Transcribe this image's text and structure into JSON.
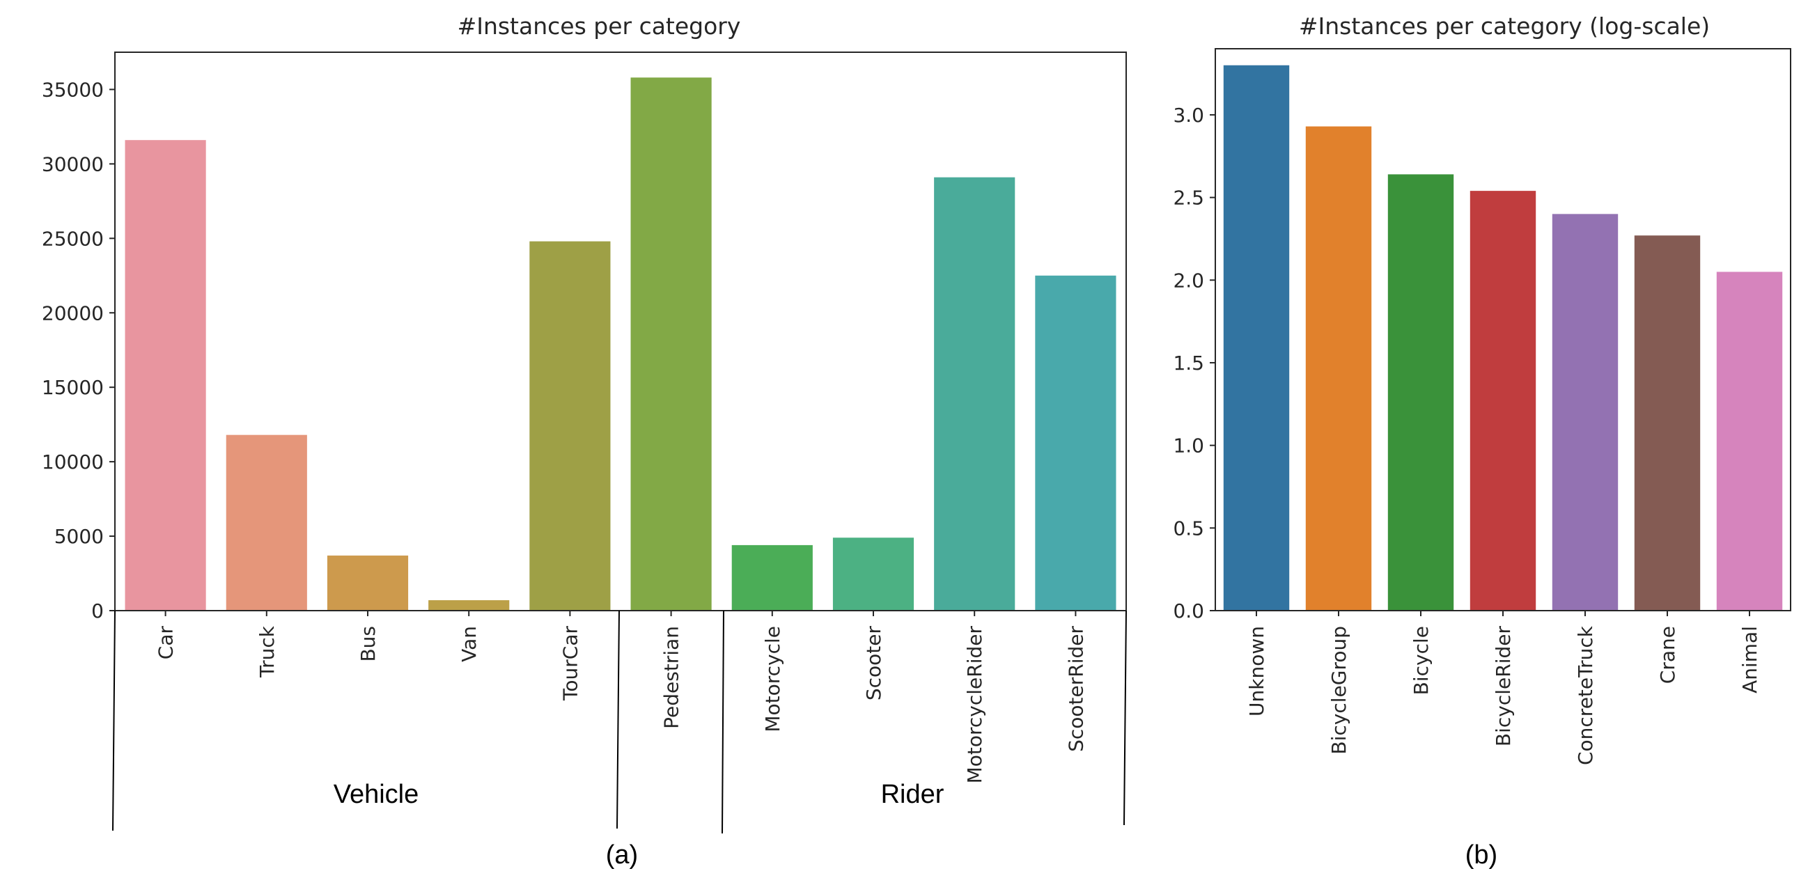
{
  "chart_data": [
    {
      "type": "bar",
      "title": "#Instances per category",
      "xlabel": "",
      "ylabel": "",
      "categories": [
        "Car",
        "Truck",
        "Bus",
        "Van",
        "TourCar",
        "Pedestrian",
        "Motorcycle",
        "Scooter",
        "MotorcycleRider",
        "ScooterRider"
      ],
      "values": [
        31600,
        11800,
        3700,
        700,
        24800,
        35800,
        4400,
        4900,
        29100,
        22500
      ],
      "colors": [
        "#e8959f",
        "#e5967a",
        "#cd9a4d",
        "#bca048",
        "#9ea046",
        "#82a946",
        "#4bad57",
        "#4cb183",
        "#4aab9a",
        "#49a9ab"
      ],
      "ylim": [
        0,
        37500
      ],
      "yticks": [
        0,
        5000,
        10000,
        15000,
        20000,
        25000,
        30000,
        35000
      ],
      "ytick_labels": [
        "0",
        "5000",
        "10000",
        "15000",
        "20000",
        "25000",
        "30000",
        "35000"
      ],
      "groups": [
        {
          "label": "Vehicle",
          "categories": [
            "Car",
            "Truck",
            "Bus",
            "Van",
            "TourCar"
          ]
        },
        {
          "label": "",
          "categories": [
            "Pedestrian"
          ]
        },
        {
          "label": "Rider",
          "categories": [
            "Motorcycle",
            "Scooter",
            "MotorcycleRider",
            "ScooterRider"
          ]
        }
      ],
      "panel_label": "(a)",
      "grid": false,
      "legend": "none"
    },
    {
      "type": "bar",
      "title": "#Instances per category (log-scale)",
      "xlabel": "",
      "ylabel": "",
      "categories": [
        "Unknown",
        "BicycleGroup",
        "Bicycle",
        "BicycleRider",
        "ConcreteTruck",
        "Crane",
        "Animal"
      ],
      "values": [
        3.3,
        2.93,
        2.64,
        2.54,
        2.4,
        2.27,
        2.05
      ],
      "colors": [
        "#3274a1",
        "#e1812c",
        "#3a923a",
        "#c03d3e",
        "#9372b2",
        "#845b53",
        "#d684bd"
      ],
      "ylim": [
        0,
        3.4
      ],
      "yticks": [
        0,
        0.5,
        1.0,
        1.5,
        2.0,
        2.5,
        3.0
      ],
      "ytick_labels": [
        "0.0",
        "0.5",
        "1.0",
        "1.5",
        "2.0",
        "2.5",
        "3.0"
      ],
      "panel_label": "(b)",
      "grid": false,
      "legend": "none"
    }
  ]
}
